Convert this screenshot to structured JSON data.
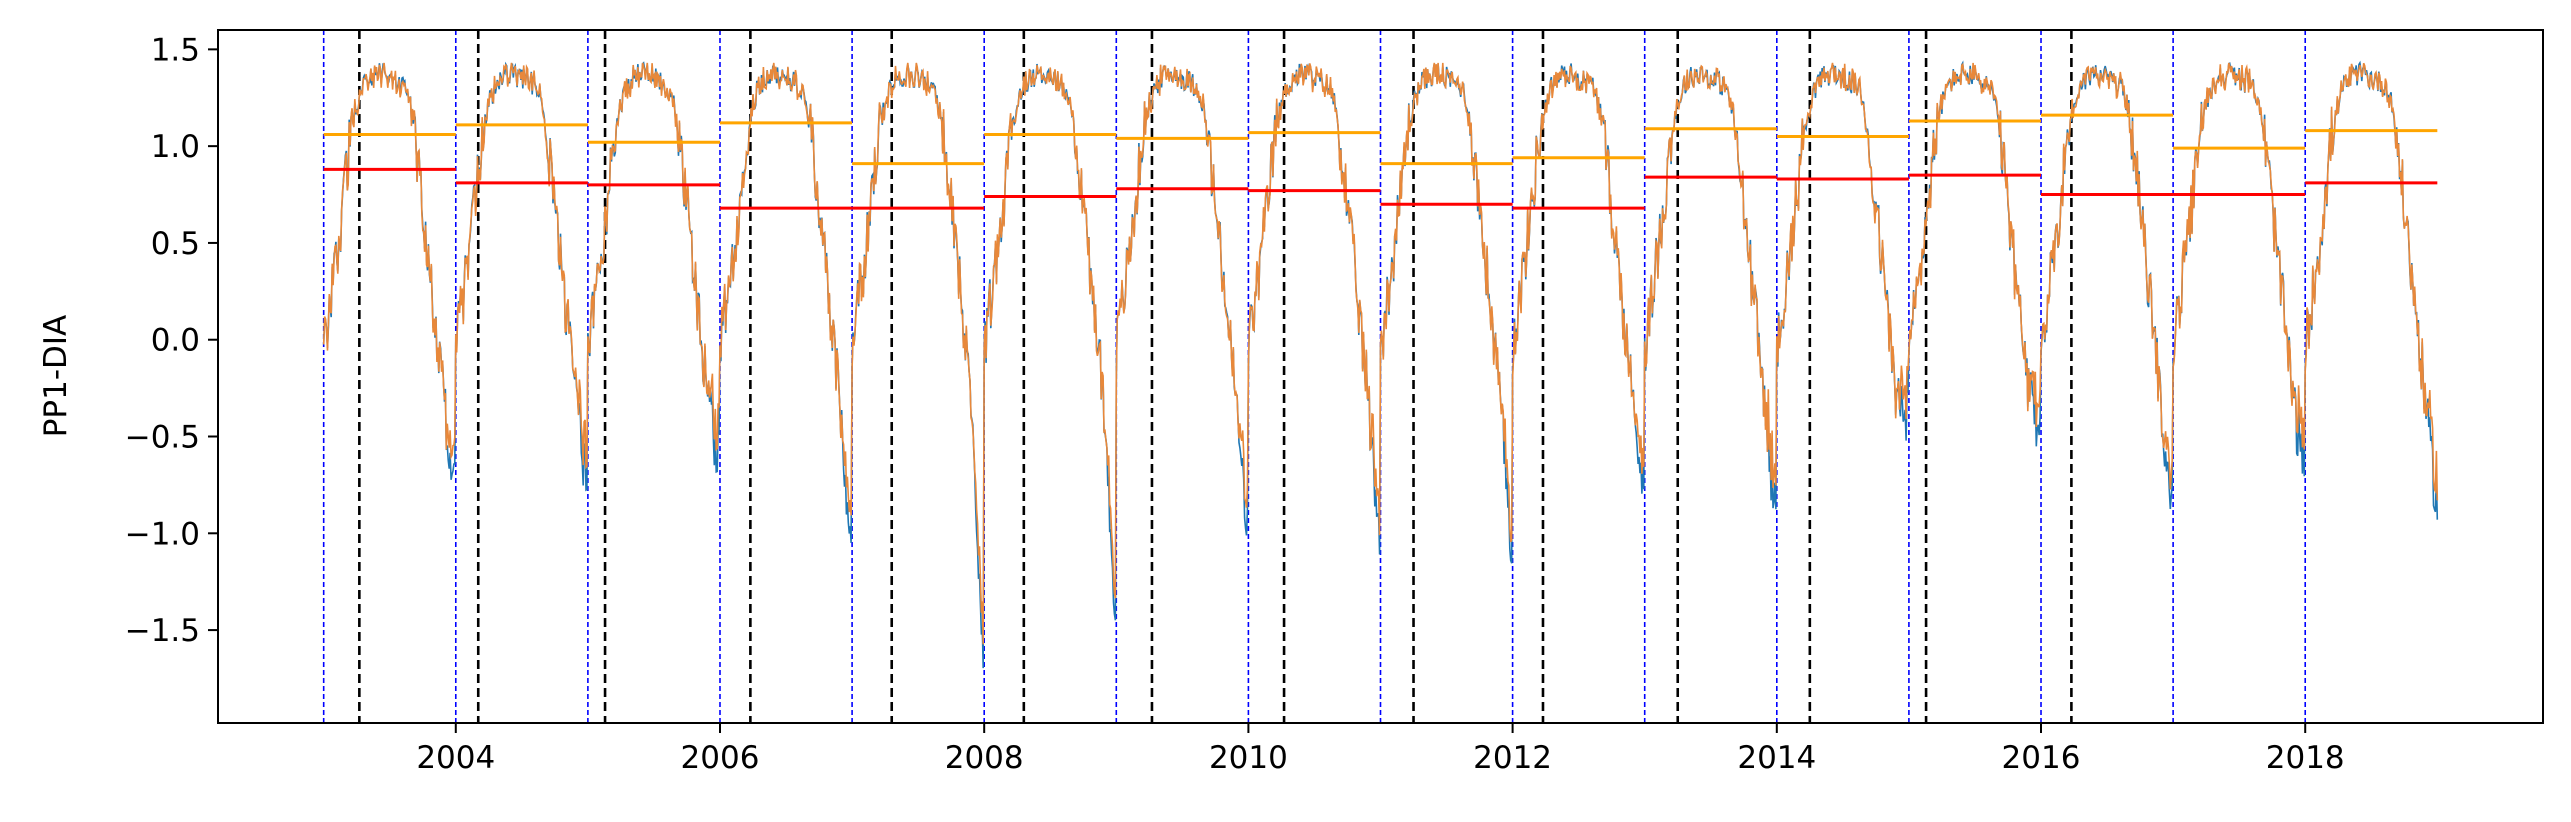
{
  "chart_data": {
    "type": "line",
    "title": "",
    "xlabel": "",
    "ylabel": "PP1-DIA",
    "xlim": [
      2002.2,
      2019.8
    ],
    "ylim": [
      -1.98,
      1.6
    ],
    "x_ticks": [
      2004,
      2006,
      2008,
      2010,
      2012,
      2014,
      2016,
      2018
    ],
    "x_tick_labels": [
      "2004",
      "2006",
      "2008",
      "2010",
      "2012",
      "2014",
      "2016",
      "2018"
    ],
    "y_ticks": [
      -1.5,
      -1.0,
      -0.5,
      0.0,
      0.5,
      1.0,
      1.5
    ],
    "y_tick_labels": [
      "−1.5",
      "−1.0",
      "−0.5",
      "0.0",
      "0.5",
      "1.0",
      "1.5"
    ],
    "grid": false,
    "legend": "none",
    "colors": {
      "series_primary": "#1f77b4",
      "series_secondary": "#e8883a",
      "mean_level_a": "#ffa500",
      "mean_level_b": "#ff0000",
      "year_boundary": "#0000ff",
      "event_marker": "#000000"
    },
    "year_boundaries": [
      2003,
      2004,
      2005,
      2006,
      2007,
      2008,
      2009,
      2010,
      2011,
      2012,
      2013,
      2014,
      2015,
      2016,
      2017,
      2018
    ],
    "event_markers": [
      2003.27,
      2004.17,
      2005.13,
      2006.23,
      2007.3,
      2008.3,
      2009.27,
      2010.27,
      2011.25,
      2012.23,
      2013.25,
      2014.25,
      2015.13,
      2016.23
    ],
    "annual_levels_orange": [
      {
        "start": 2003,
        "end": 2004,
        "value": 1.06
      },
      {
        "start": 2004,
        "end": 2005,
        "value": 1.11
      },
      {
        "start": 2005,
        "end": 2006,
        "value": 1.02
      },
      {
        "start": 2006,
        "end": 2007,
        "value": 1.12
      },
      {
        "start": 2007,
        "end": 2008,
        "value": 0.91
      },
      {
        "start": 2008,
        "end": 2009,
        "value": 1.06
      },
      {
        "start": 2009,
        "end": 2010,
        "value": 1.04
      },
      {
        "start": 2010,
        "end": 2011,
        "value": 1.07
      },
      {
        "start": 2011,
        "end": 2012,
        "value": 0.91
      },
      {
        "start": 2012,
        "end": 2013,
        "value": 0.94
      },
      {
        "start": 2013,
        "end": 2014,
        "value": 1.09
      },
      {
        "start": 2014,
        "end": 2015,
        "value": 1.05
      },
      {
        "start": 2015,
        "end": 2016,
        "value": 1.13
      },
      {
        "start": 2016,
        "end": 2017,
        "value": 1.16
      },
      {
        "start": 2017,
        "end": 2018,
        "value": 0.99
      },
      {
        "start": 2018,
        "end": 2019,
        "value": 1.08
      }
    ],
    "annual_levels_red": [
      {
        "start": 2003,
        "end": 2004,
        "value": 0.88
      },
      {
        "start": 2004,
        "end": 2005,
        "value": 0.81
      },
      {
        "start": 2005,
        "end": 2006,
        "value": 0.8
      },
      {
        "start": 2006,
        "end": 2007,
        "value": 0.68
      },
      {
        "start": 2007,
        "end": 2008,
        "value": 0.68
      },
      {
        "start": 2008,
        "end": 2009,
        "value": 0.74
      },
      {
        "start": 2009,
        "end": 2010,
        "value": 0.78
      },
      {
        "start": 2010,
        "end": 2011,
        "value": 0.77
      },
      {
        "start": 2011,
        "end": 2012,
        "value": 0.7
      },
      {
        "start": 2012,
        "end": 2013,
        "value": 0.68
      },
      {
        "start": 2013,
        "end": 2014,
        "value": 0.84
      },
      {
        "start": 2014,
        "end": 2015,
        "value": 0.83
      },
      {
        "start": 2015,
        "end": 2016,
        "value": 0.85
      },
      {
        "start": 2016,
        "end": 2017,
        "value": 0.75
      },
      {
        "start": 2017,
        "end": 2018,
        "value": 0.75
      },
      {
        "start": 2018,
        "end": 2019,
        "value": 0.81
      }
    ],
    "annual_profile": {
      "x_in_year": [
        0.0,
        0.04,
        0.08,
        0.12,
        0.16,
        0.2,
        0.25,
        0.3,
        0.36,
        0.42,
        0.5,
        0.56,
        0.62,
        0.66,
        0.7,
        0.74,
        0.78,
        0.82,
        0.86,
        0.9,
        0.94,
        0.98
      ],
      "y": [
        -0.05,
        0.15,
        0.35,
        0.55,
        0.8,
        1.05,
        1.22,
        1.32,
        1.36,
        1.38,
        1.35,
        1.33,
        1.3,
        1.2,
        1.0,
        0.75,
        0.5,
        0.25,
        0.0,
        -0.25,
        -0.45,
        -0.6
      ],
      "annual_minimum": [
        -0.78,
        -0.72,
        -0.58,
        -1.08,
        -1.83,
        -1.52,
        -1.02,
        -1.03,
        -1.12,
        -0.72,
        -0.93,
        -0.33,
        -0.38,
        -0.93,
        -0.65,
        -0.82
      ],
      "final_value_2019": -0.93
    }
  }
}
